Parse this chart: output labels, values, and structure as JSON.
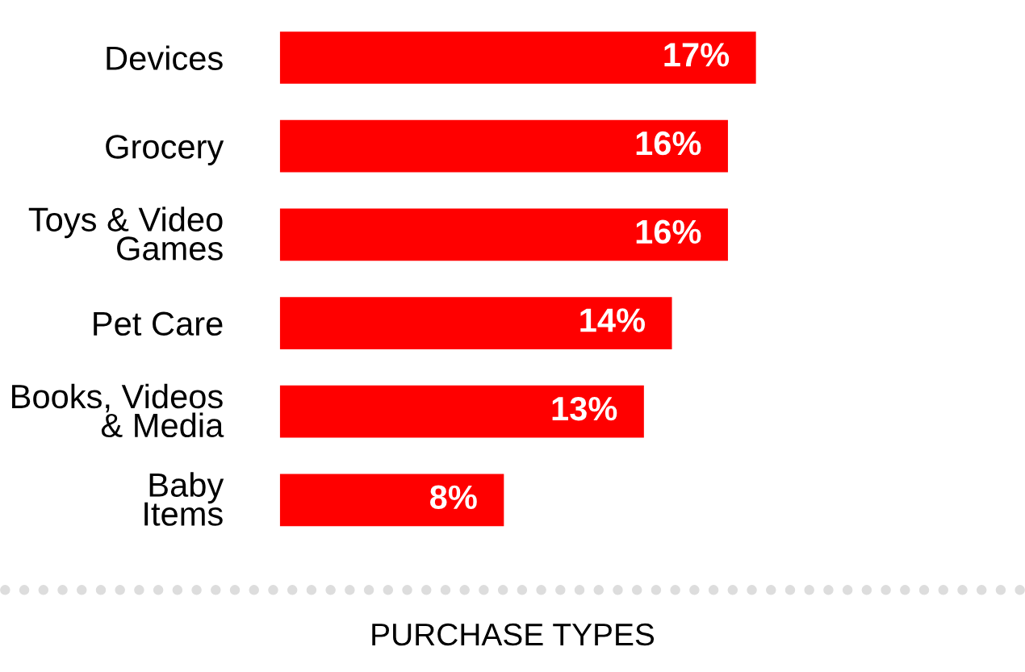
{
  "chart_data": {
    "type": "bar",
    "orientation": "horizontal",
    "categories": [
      "Devices",
      "Grocery",
      "Toys & Video\nGames",
      "Pet Care",
      "Books, Videos\n& Media",
      "Baby\nItems"
    ],
    "values": [
      17,
      16,
      16,
      14,
      13,
      8
    ],
    "color": "#ff0000",
    "data_labels": true,
    "value_labels": [
      "17%",
      "16%",
      "16%",
      "14%",
      "13%",
      "8%"
    ],
    "annotations": [
      "PURCHASE TYPES"
    ]
  }
}
